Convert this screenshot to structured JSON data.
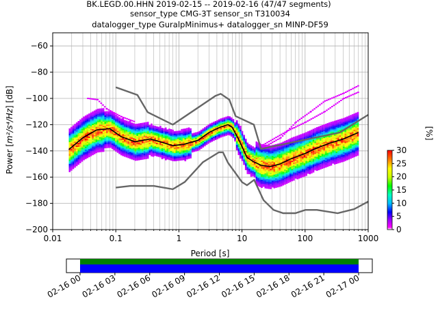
{
  "title": {
    "line1": "BK.LEGD.00.HHN   2019-02-15 -- 2019-02-16  (47/47 segments)",
    "line2": "sensor_type CMG-3T sensor_sn T310034",
    "line3": "datalogger_type GuralpMinimus+ datalogger_sn MINP-DF59"
  },
  "chart_data": [
    {
      "type": "heatmap",
      "subtype": "probabilistic-power-spectral-density",
      "xlabel": "Period [s]",
      "ylabel_prefix": "Power [",
      "ylabel_units": "m²/s⁴/Hz",
      "ylabel_suffix": "] [dB]",
      "xscale": "log",
      "xlim": [
        0.01,
        1000
      ],
      "ylim": [
        -200,
        -50
      ],
      "xticks": [
        {
          "value": 0.01,
          "label": "0.01"
        },
        {
          "value": 0.1,
          "label": "0.1"
        },
        {
          "value": 1,
          "label": "1"
        },
        {
          "value": 10,
          "label": "10"
        },
        {
          "value": 100,
          "label": "100"
        },
        {
          "value": 1000,
          "label": "1000"
        }
      ],
      "yticks": [
        {
          "value": -60,
          "label": "−60"
        },
        {
          "value": -80,
          "label": "−80"
        },
        {
          "value": -100,
          "label": "−100"
        },
        {
          "value": -120,
          "label": "−120"
        },
        {
          "value": -140,
          "label": "−140"
        },
        {
          "value": -160,
          "label": "−160"
        },
        {
          "value": -180,
          "label": "−180"
        },
        {
          "value": -200,
          "label": "−200"
        }
      ],
      "grid": true,
      "mean_curve": {
        "period": [
          0.018,
          0.03,
          0.05,
          0.08,
          0.12,
          0.2,
          0.35,
          0.5,
          0.8,
          1.2,
          2,
          3,
          4.5,
          6,
          7,
          9,
          12,
          15,
          20,
          28,
          40,
          60,
          100,
          150,
          250,
          400,
          700
        ],
        "power": [
          -139,
          -130,
          -124,
          -123,
          -129,
          -133,
          -131,
          -133,
          -136,
          -135,
          -132,
          -126,
          -122,
          -120,
          -122,
          -132,
          -145,
          -148,
          -151,
          -152,
          -150,
          -146,
          -142,
          -138,
          -134,
          -131,
          -126
        ]
      },
      "nhnm": {
        "period": [
          0.1,
          0.22,
          0.32,
          0.8,
          3.8,
          4.6,
          6.3,
          7.9,
          15.4,
          20,
          354.8,
          1000
        ],
        "power": [
          -91.5,
          -97.4,
          -110.5,
          -120,
          -98,
          -96.5,
          -101,
          -113.5,
          -120,
          -138.5,
          -126,
          -112.5
        ]
      },
      "nlnm": {
        "period": [
          0.1,
          0.17,
          0.4,
          0.8,
          1.24,
          2.4,
          4.3,
          5,
          6,
          10,
          12,
          15.6,
          21.9,
          31.6,
          45,
          70,
          101,
          154,
          328,
          600,
          1000
        ],
        "power": [
          -168,
          -166.7,
          -166.7,
          -169.2,
          -163.7,
          -148.6,
          -141.1,
          -141.1,
          -149,
          -163.8,
          -166.2,
          -162.1,
          -177.5,
          -185,
          -187.5,
          -187.5,
          -185,
          -185,
          -187.5,
          -184.4,
          -178.6
        ]
      }
    },
    {
      "type": "colorbar",
      "label": "[%]",
      "range": [
        0,
        30
      ],
      "ticks": [
        {
          "value": 0,
          "label": "0"
        },
        {
          "value": 5,
          "label": "5"
        },
        {
          "value": 10,
          "label": "10"
        },
        {
          "value": 15,
          "label": "15"
        },
        {
          "value": 20,
          "label": "20"
        },
        {
          "value": 25,
          "label": "25"
        },
        {
          "value": 30,
          "label": "30"
        }
      ]
    },
    {
      "type": "timeline",
      "start": "2019-02-16 00:00",
      "end": "2019-02-17 00:00",
      "tick_labels": [
        "02-16 00",
        "02-16 03",
        "02-16 06",
        "02-16 09",
        "02-16 12",
        "02-16 15",
        "02-16 18",
        "02-16 21",
        "02-17 00"
      ],
      "bar_colors": {
        "top": "#008000",
        "bottom": "#0000ff"
      }
    }
  ]
}
